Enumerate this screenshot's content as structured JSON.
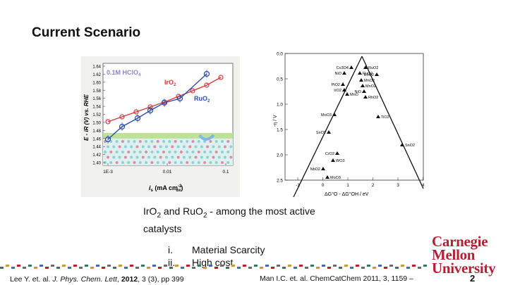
{
  "slide": {
    "title": "Current Scenario",
    "number": "2"
  },
  "left_chart": {
    "panel_label": "0.1M HClO",
    "panel_label_sub": "4",
    "ylabel": "E - iR (V) vs. RHE",
    "xlabel_main": "i",
    "xlabel_sub": "s",
    "xlabel_rest": " (mA cm",
    "xlabel_sup": "-2",
    "xlabel_sub2": "ox",
    "xlabel_end": ")",
    "y_ticks": [
      "1.64",
      "1.62",
      "1.60",
      "1.58",
      "1.56",
      "1.54",
      "1.52",
      "1.50",
      "1.48",
      "1.46",
      "1.44",
      "1.42",
      "1.40"
    ],
    "x_ticks": [
      "1E-3",
      "0.01",
      "0.1"
    ],
    "series_iro2_label": "IrO",
    "series_iro2_sub": "2",
    "series_ruo2_label": "RuO",
    "series_ruo2_sub": "2",
    "colors": {
      "iro2": "#d23a3a",
      "ruo2": "#2b4fb0",
      "band": "#bfe29a"
    }
  },
  "right_chart": {
    "ylabel": "-η / V",
    "y_ticks": [
      "0.0",
      "0.5",
      "1.0",
      "1.5",
      "2.0",
      "2.5"
    ],
    "x_ticks": [
      "-1",
      "0",
      "1",
      "2",
      "3",
      "4"
    ],
    "xlabel": "ΔG°O - ΔG°OH / eV",
    "point_labels": [
      "Co3O4",
      "RuO2",
      "NiO",
      "RuO2",
      "RhO2",
      "MnO2",
      "PtO2",
      "MnO2",
      "IrO2",
      "MnO",
      "NiO",
      "RhO2",
      "MoO3",
      "TiO2",
      "SnO2",
      "SnO2",
      "CrO2",
      "WO3",
      "NbO2",
      "MoO3"
    ]
  },
  "caption": {
    "text_a": "IrO",
    "sub_a": "2",
    "text_b": "  and RuO",
    "sub_b": "2",
    "text_c": " - among the most active catalysts"
  },
  "list": [
    {
      "num": "i.",
      "text": "Material Scarcity"
    },
    {
      "num": "ii.",
      "text": "High cost"
    }
  ],
  "references": {
    "left_a": "Lee Y. et. al. ",
    "left_journal": "J. Phys. Chem. Lett",
    "left_b": ", ",
    "left_year": "2012",
    "left_c": ", 3 (3), pp 399",
    "right": "Man I.C. et. al. ChemCatChem 2011, 3, 1159 –"
  },
  "logo": {
    "line1": "Carnegie",
    "line2": "Mellon",
    "line3": "University",
    "color": "#b41f33"
  }
}
